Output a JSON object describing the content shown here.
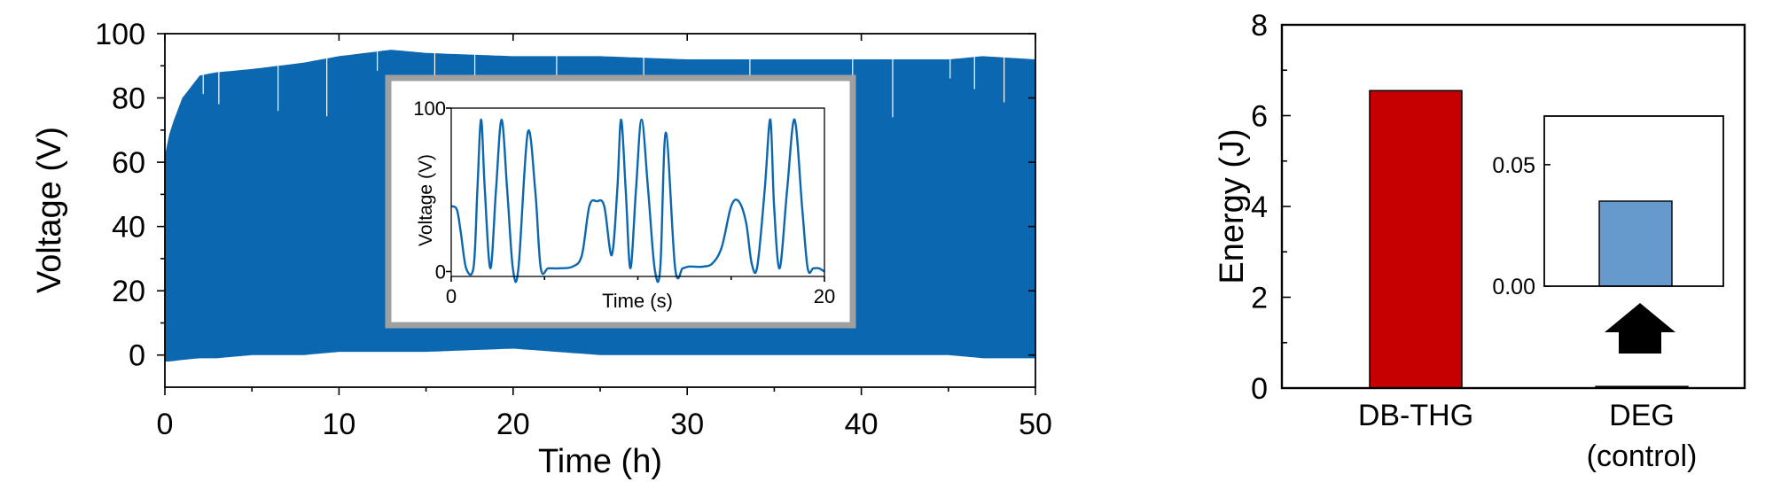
{
  "colors": {
    "signal": "#0b67b0",
    "bar_dbthg": "#c60000",
    "bar_deg": "#6699cc",
    "inset_frame": "#a0a0a0",
    "axis": "#000000"
  },
  "inset_arrow_icon": "up-arrow-icon",
  "chart_data": [
    {
      "type": "area",
      "xlabel": "Time (h)",
      "ylabel": "Voltage (V)",
      "xlim": [
        0,
        50
      ],
      "ylim": [
        -10,
        100
      ],
      "xticks": [
        "0",
        "10",
        "20",
        "30",
        "40",
        "50"
      ],
      "yticks": [
        "0",
        "20",
        "40",
        "60",
        "80",
        "100"
      ],
      "x": [
        0,
        0.3,
        1,
        2,
        3,
        5,
        8,
        10,
        13,
        15,
        20,
        25,
        30,
        35,
        40,
        45,
        47,
        50
      ],
      "upper": [
        62,
        70,
        80,
        87,
        88,
        89,
        91,
        93,
        95,
        94,
        93,
        93,
        92,
        92,
        92,
        92,
        93,
        92
      ],
      "lower": [
        -2,
        -2,
        -1.5,
        -1,
        -1,
        0,
        0,
        1,
        1,
        1,
        2,
        0,
        0,
        0,
        0,
        0,
        -1,
        -1
      ],
      "inset": {
        "type": "line",
        "xlabel": "Time (s)",
        "ylabel": "Voltage (V)",
        "xlim": [
          0,
          20
        ],
        "ylim": [
          -3,
          100
        ],
        "xticks": [
          "0",
          "20"
        ],
        "yticks": [
          "0",
          "100"
        ],
        "x": [
          0,
          0.3,
          0.5,
          0.8,
          1.2,
          1.4,
          1.6,
          1.8,
          2.1,
          2.4,
          2.7,
          3.0,
          3.3,
          3.6,
          4.1,
          4.5,
          4.8,
          5.2,
          5.8,
          6.5,
          7.0,
          7.4,
          7.8,
          8.2,
          8.6,
          8.9,
          9.1,
          9.35,
          9.6,
          9.9,
          10.2,
          10.55,
          10.9,
          11.2,
          11.5,
          12.0,
          12.4,
          12.7,
          13.0,
          13.5,
          14.0,
          14.5,
          15.0,
          15.4,
          15.8,
          16.1,
          16.4,
          16.8,
          17.1,
          17.3,
          17.6,
          18.0,
          18.4,
          18.8,
          19.1,
          19.4,
          19.7,
          20
        ],
        "y": [
          40,
          38,
          25,
          2,
          3,
          50,
          93,
          50,
          2,
          50,
          93,
          50,
          2,
          2,
          85,
          50,
          2,
          2,
          2,
          3,
          10,
          40,
          43,
          40,
          10,
          50,
          93,
          50,
          2,
          50,
          93,
          50,
          2,
          2,
          85,
          2,
          2,
          3,
          3,
          3,
          5,
          15,
          40,
          43,
          30,
          5,
          3,
          50,
          93,
          40,
          2,
          50,
          93,
          40,
          2,
          2,
          2,
          0
        ]
      }
    },
    {
      "type": "bar",
      "categories": [
        "DB-THG",
        "DEG\n(control)"
      ],
      "values": [
        6.55,
        0.035
      ],
      "ylabel": "Energy (J)",
      "ylim": [
        0,
        8
      ],
      "yticks": [
        "0",
        "2",
        "4",
        "6",
        "8"
      ],
      "inset": {
        "type": "bar",
        "ylim": [
          0,
          0.07
        ],
        "yticks": [
          "0.00",
          "0.05"
        ],
        "values": [
          0.035
        ]
      }
    }
  ]
}
